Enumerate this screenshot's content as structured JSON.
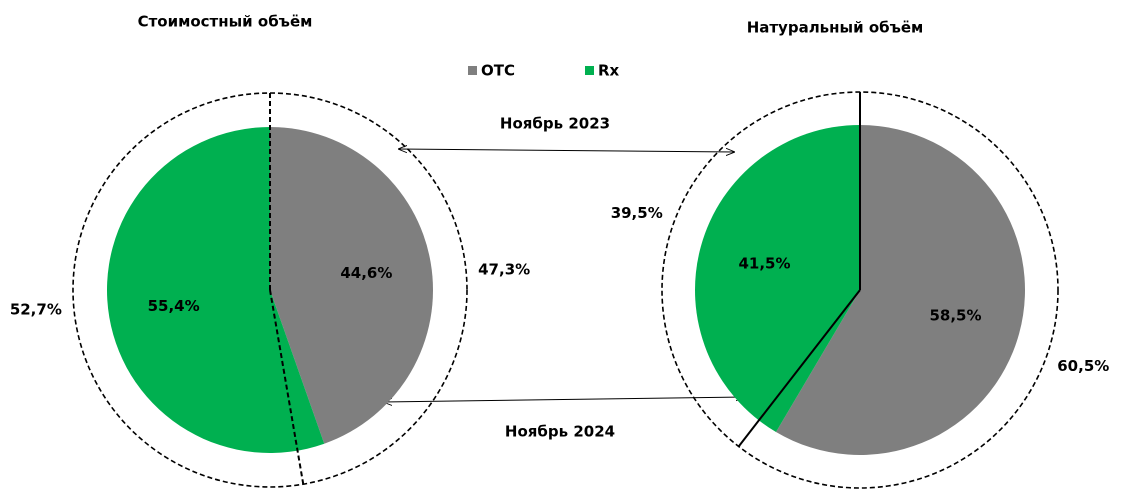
{
  "legend": [
    {
      "name": "OTC",
      "color": "#7f7f7f"
    },
    {
      "name": "Rx",
      "color": "#00b050"
    }
  ],
  "annotations": {
    "outer": "Ноябрь 2023",
    "inner": "Ноябрь 2024"
  },
  "chart_data": [
    {
      "type": "pie",
      "title": "Стоимостный объём",
      "line_style": "dashed",
      "inner": {
        "values": [
          44.6,
          55.4
        ],
        "value_labels": [
          "44,6%",
          "55,4%"
        ]
      },
      "outer": {
        "values": [
          47.3,
          52.7
        ],
        "value_labels": [
          "47,3%",
          "52,7%"
        ]
      }
    },
    {
      "type": "pie",
      "title": "Натуральный объём",
      "line_style": "solid",
      "inner": {
        "values": [
          58.5,
          41.5
        ],
        "value_labels": [
          "58,5%",
          "41,5%"
        ]
      },
      "outer": {
        "values": [
          60.5,
          39.5
        ],
        "value_labels": [
          "60,5%",
          "39,5%"
        ]
      }
    }
  ]
}
